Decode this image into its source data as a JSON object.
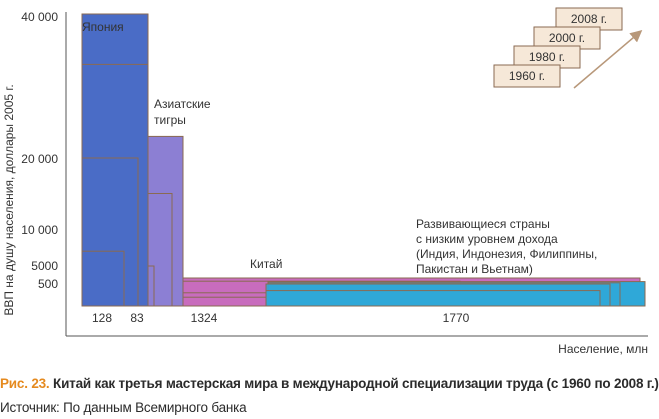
{
  "chart_data": {
    "type": "bar",
    "ylabel": "ВВП на душу населения, доллары 2005 г.",
    "xlabel": "Население, млн",
    "ytick_labels": [
      "40 000",
      "20 000",
      "10 000",
      "5000",
      "500"
    ],
    "x_values": [
      "128",
      "83",
      "1324",
      "1770"
    ],
    "years": [
      "1960 г.",
      "1980 г.",
      "2000 г.",
      "2008 г."
    ],
    "groups": [
      {
        "label": "Япония",
        "population_mln": 128,
        "color": "#4a6cc6",
        "gdp_per_capita": {
          "1960 г.": 7000,
          "1980 г.": 20000,
          "2000 г.": 33000,
          "2008 г.": 40000
        }
      },
      {
        "label": "Азиатские тигры",
        "population_mln": 83,
        "color": "#8c7fd3",
        "gdp_per_capita": {
          "1960 г.": 1500,
          "1980 г.": 5000,
          "2000 г.": 15000,
          "2008 г.": 23000
        }
      },
      {
        "label": "Китай",
        "population_mln": 1324,
        "color": "#c86cbd",
        "gdp_per_capita": {
          "1960 г.": 200,
          "1980 г.": 300,
          "2000 г.": 1200,
          "2008 г.": 2000
        }
      },
      {
        "label": "Развивающиеся страны\nс низким уровнем дохода\n(Индия, Индонезия, Филиппины,\nПакистан и Вьетнам)",
        "population_mln": 1770,
        "color": "#2fa8d8",
        "gdp_per_capita": {
          "1960 г.": 350,
          "1980 г.": 500,
          "2000 г.": 800,
          "2008 г.": 1100
        }
      }
    ]
  },
  "caption": {
    "number": "Рис. 23.",
    "text": "Китай как третья мастерская мира в международной специализации труда (с 1960 по 2008 г.)",
    "source": "Источник: По данным Всемирного банка"
  }
}
